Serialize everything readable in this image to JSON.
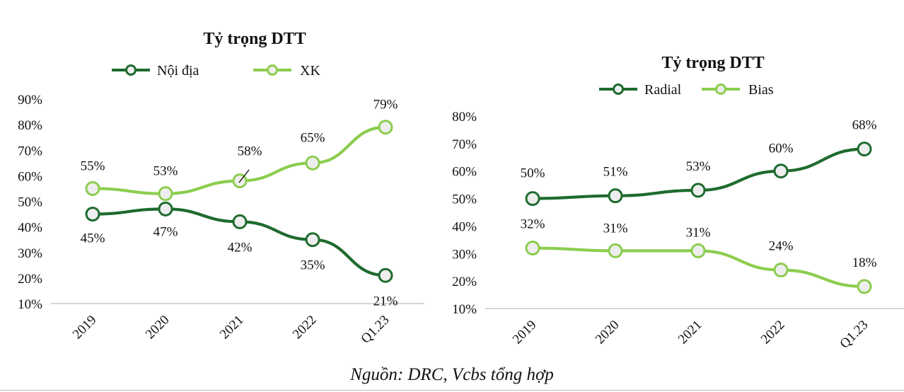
{
  "source_note": "Nguồn: DRC, Vcbs tổng hợp",
  "colors": {
    "dark_green": "#1e6b2e",
    "light_green": "#8ccd4f",
    "marker_fill": "#eeeeee",
    "axis": "#bfbfbf"
  },
  "chart_data": [
    {
      "type": "line",
      "title": "Tỷ trọng DTT",
      "categories": [
        "2019",
        "2020",
        "2021",
        "2022",
        "Q1.23"
      ],
      "yticks": [
        "90%",
        "80%",
        "70%",
        "60%",
        "50%",
        "40%",
        "30%",
        "20%",
        "10%"
      ],
      "ylim": [
        10,
        90
      ],
      "legend_position": "top",
      "series": [
        {
          "name": "Nội địa",
          "color": "#1e6b2e",
          "values": [
            45,
            47,
            42,
            35,
            21
          ],
          "labels": [
            "45%",
            "47%",
            "42%",
            "35%",
            "21%"
          ],
          "label_side": "below"
        },
        {
          "name": "XK",
          "color": "#8ccd4f",
          "values": [
            55,
            53,
            58,
            65,
            79
          ],
          "labels": [
            "55%",
            "53%",
            "58%",
            "65%",
            "79%"
          ],
          "label_side": "above"
        }
      ]
    },
    {
      "type": "line",
      "title": "Tỷ trọng DTT",
      "categories": [
        "2019",
        "2020",
        "2021",
        "2022",
        "Q1.23"
      ],
      "yticks": [
        "80%",
        "70%",
        "60%",
        "50%",
        "40%",
        "30%",
        "20%",
        "10%"
      ],
      "ylim": [
        10,
        80
      ],
      "legend_position": "top",
      "series": [
        {
          "name": "Radial",
          "color": "#1e6b2e",
          "values": [
            50,
            51,
            53,
            60,
            68
          ],
          "labels": [
            "50%",
            "51%",
            "53%",
            "60%",
            "68%"
          ],
          "label_side": "above"
        },
        {
          "name": "Bias",
          "color": "#8ccd4f",
          "values": [
            32,
            31,
            31,
            24,
            18
          ],
          "labels": [
            "32%",
            "31%",
            "31%",
            "24%",
            "18%"
          ],
          "label_side": "above"
        }
      ]
    }
  ]
}
